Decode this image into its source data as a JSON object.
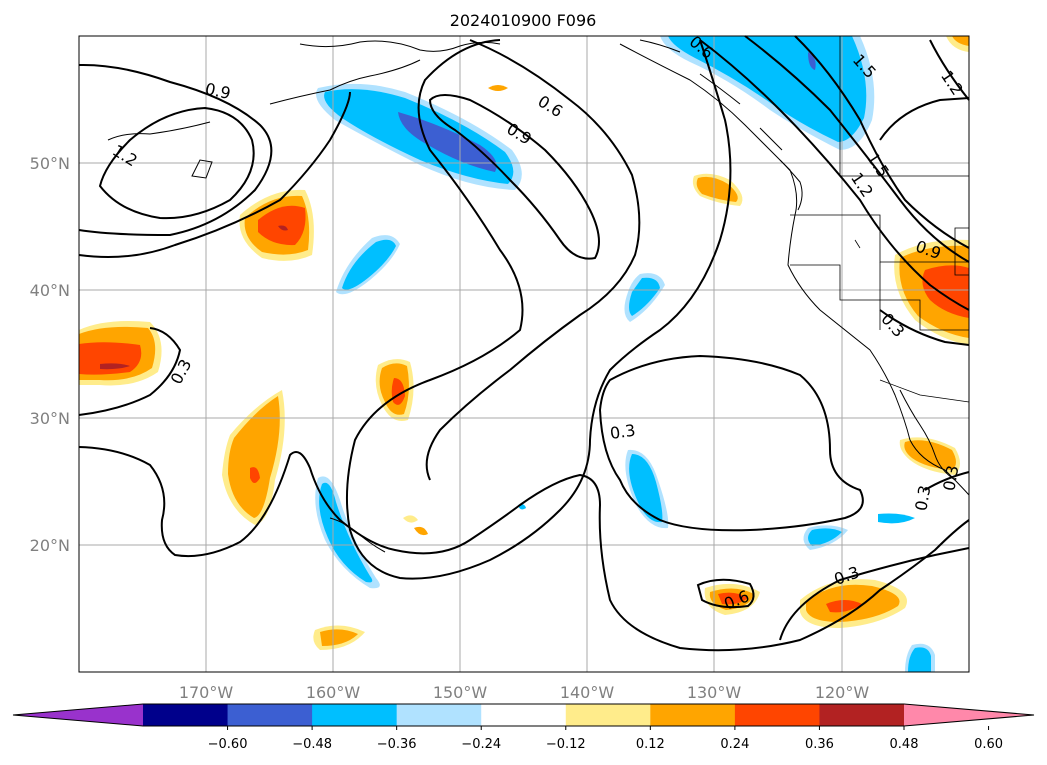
{
  "title": "2024010900 F096",
  "lon_ticks": [
    "170°W",
    "160°W",
    "150°W",
    "140°W",
    "130°W",
    "120°W"
  ],
  "lat_ticks": [
    "20°N",
    "30°N",
    "40°N",
    "50°N"
  ],
  "colorbar": {
    "ticks": [
      "−0.60",
      "−0.48",
      "−0.36",
      "−0.24",
      "−0.12",
      "0.12",
      "0.24",
      "0.36",
      "0.48",
      "0.60"
    ],
    "colors": [
      "#9932cc",
      "#00008b",
      "#3c5fd2",
      "#00bfff",
      "#b0e2ff",
      "#ffffff",
      "#ffec8b",
      "#ffa500",
      "#ff4500",
      "#b22222",
      "#ff88aa"
    ]
  },
  "contour_labels": [
    "0.9",
    "1.2",
    "0.6",
    "0.9",
    "0.3",
    "0.3",
    "0.3",
    "0.6",
    "0.3",
    "0.6",
    "1.5",
    "1.2",
    "1.5",
    "1.2",
    "0.9",
    "0.3",
    "0.3"
  ],
  "fill_colors": {
    "neg_light": "#b0e2ff",
    "neg_mid": "#00bfff",
    "neg_dark": "#3c5fd2",
    "pos_light": "#ffec8b",
    "pos_mid": "#ffa500",
    "pos_dark": "#ff4500",
    "pos_darker": "#b22222"
  }
}
